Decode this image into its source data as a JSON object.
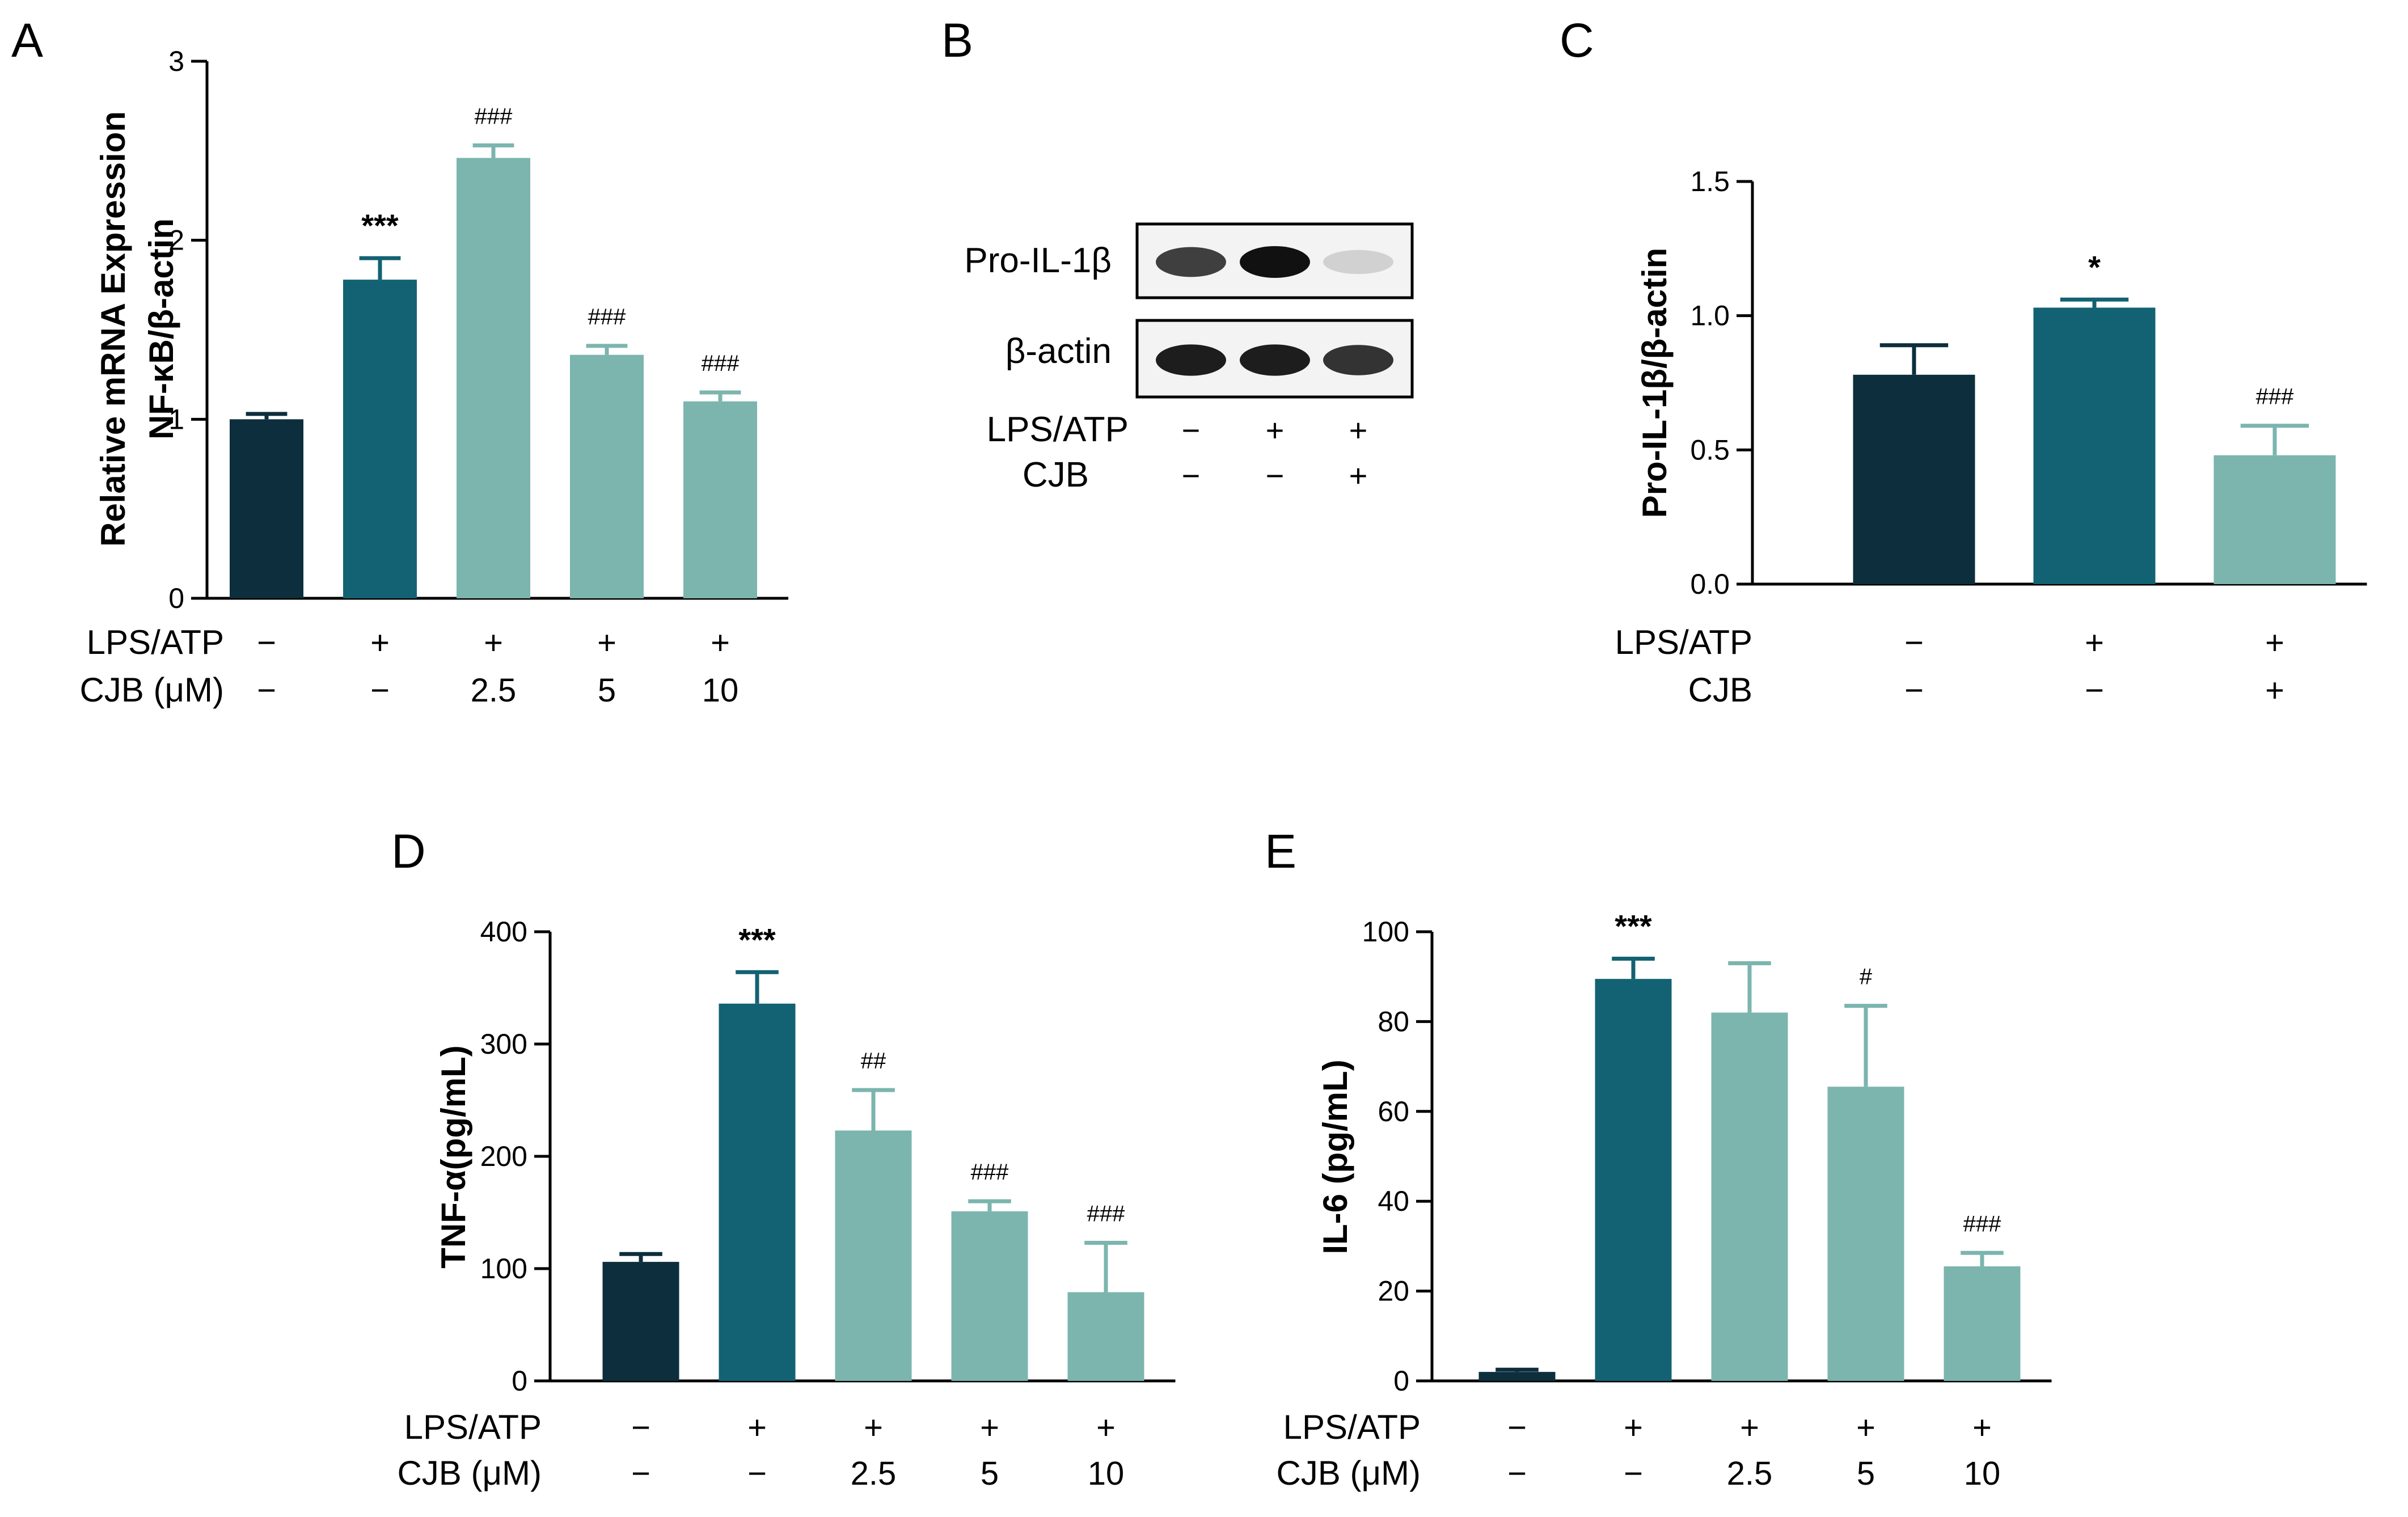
{
  "colors": {
    "dark": "#0d2e3c",
    "mid": "#136273",
    "light": "#7bb5ae",
    "axis": "#000000"
  },
  "chart_data": [
    {
      "id": "A",
      "panel_label": "A",
      "type": "bar",
      "ylabel_lines": [
        "Relative mRNA Expression",
        "NF-κB/β-actin"
      ],
      "ylim": [
        0,
        3
      ],
      "yticks": [
        "0",
        "1",
        "2",
        "3"
      ],
      "yticks_values": [
        0,
        1,
        2,
        3
      ],
      "values": [
        1.0,
        1.78,
        2.46,
        1.36,
        1.1
      ],
      "errors": [
        0.03,
        0.12,
        0.07,
        0.05,
        0.05
      ],
      "colors": [
        "dark",
        "mid",
        "light",
        "light",
        "light"
      ],
      "annotations": [
        "",
        "***",
        "###",
        "###",
        "###"
      ],
      "conditions": [
        {
          "label": "LPS/ATP",
          "values": [
            "−",
            "+",
            "+",
            "+",
            "+"
          ]
        },
        {
          "label": "CJB (μM)",
          "values": [
            "−",
            "−",
            "2.5",
            "5",
            "10"
          ]
        }
      ]
    },
    {
      "id": "C",
      "panel_label": "C",
      "type": "bar",
      "ylabel_lines": [
        "Pro-IL-1β/β-actin"
      ],
      "ylim": [
        0,
        1.5
      ],
      "yticks": [
        "0.0",
        "0.5",
        "1.0",
        "1.5"
      ],
      "yticks_values": [
        0,
        0.5,
        1.0,
        1.5
      ],
      "values": [
        0.78,
        1.03,
        0.48
      ],
      "errors": [
        0.11,
        0.03,
        0.11
      ],
      "colors": [
        "dark",
        "mid",
        "light"
      ],
      "annotations": [
        "",
        "*",
        "###"
      ],
      "conditions": [
        {
          "label": "LPS/ATP",
          "values": [
            "−",
            "+",
            "+"
          ]
        },
        {
          "label": "CJB",
          "values": [
            "−",
            "−",
            "+"
          ]
        }
      ]
    },
    {
      "id": "D",
      "panel_label": "D",
      "type": "bar",
      "ylabel_lines": [
        "TNF-α(pg/mL)"
      ],
      "ylim": [
        0,
        400
      ],
      "yticks": [
        "0",
        "100",
        "200",
        "300",
        "400"
      ],
      "yticks_values": [
        0,
        100,
        200,
        300,
        400
      ],
      "values": [
        106,
        336,
        223,
        151,
        79
      ],
      "errors": [
        7,
        28,
        36,
        9,
        44
      ],
      "colors": [
        "dark",
        "mid",
        "light",
        "light",
        "light"
      ],
      "annotations": [
        "",
        "***",
        "##",
        "###",
        "###"
      ],
      "conditions": [
        {
          "label": "LPS/ATP",
          "values": [
            "−",
            "+",
            "+",
            "+",
            "+"
          ]
        },
        {
          "label": "CJB (μM)",
          "values": [
            "−",
            "−",
            "2.5",
            "5",
            "10"
          ]
        }
      ]
    },
    {
      "id": "E",
      "panel_label": "E",
      "type": "bar",
      "ylabel_lines": [
        "IL-6 (pg/mL)"
      ],
      "ylim": [
        0,
        100
      ],
      "yticks": [
        "0",
        "20",
        "40",
        "60",
        "80",
        "100"
      ],
      "yticks_values": [
        0,
        20,
        40,
        60,
        80,
        100
      ],
      "values": [
        2,
        89.5,
        82,
        65.5,
        25.5
      ],
      "errors": [
        0.5,
        4.5,
        11,
        18,
        3
      ],
      "colors": [
        "dark",
        "mid",
        "light",
        "light",
        "light"
      ],
      "annotations": [
        "",
        "***",
        "",
        "#",
        "###"
      ],
      "conditions": [
        {
          "label": "LPS/ATP",
          "values": [
            "−",
            "+",
            "+",
            "+",
            "+"
          ]
        },
        {
          "label": "CJB (μM)",
          "values": [
            "−",
            "−",
            "2.5",
            "5",
            "10"
          ]
        }
      ]
    }
  ],
  "blot": {
    "panel_label": "B",
    "bands": [
      {
        "label": "Pro-IL-1β",
        "intensities": [
          0.8,
          1.0,
          0.15
        ]
      },
      {
        "label": "β-actin",
        "intensities": [
          0.95,
          0.95,
          0.85
        ]
      }
    ],
    "conditions": [
      {
        "label": "LPS/ATP",
        "values": [
          "−",
          "+",
          "+"
        ]
      },
      {
        "label": "CJB",
        "values": [
          "−",
          "−",
          "+"
        ]
      }
    ]
  }
}
